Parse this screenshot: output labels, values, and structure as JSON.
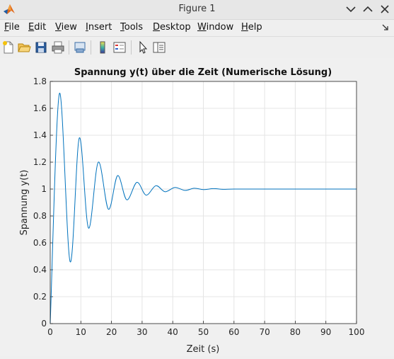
{
  "window": {
    "title": "Figure 1",
    "icon": "matlab-logo-icon",
    "controls": [
      "chevron-down-icon",
      "chevron-up-icon",
      "close-icon"
    ]
  },
  "menu": {
    "items": [
      {
        "label": "File",
        "mnemonic": "F",
        "rest": "ile"
      },
      {
        "label": "Edit",
        "mnemonic": "E",
        "rest": "dit"
      },
      {
        "label": "View",
        "mnemonic": "V",
        "rest": "iew"
      },
      {
        "label": "Insert",
        "mnemonic": "I",
        "rest": "nsert"
      },
      {
        "label": "Tools",
        "mnemonic": "T",
        "rest": "ools"
      },
      {
        "label": "Desktop",
        "mnemonic": "D",
        "rest": "esktop"
      },
      {
        "label": "Window",
        "mnemonic": "W",
        "rest": "indow"
      },
      {
        "label": "Help",
        "mnemonic": "H",
        "rest": "elp"
      }
    ]
  },
  "toolbar": {
    "buttons": [
      "new-figure-icon",
      "open-file-icon",
      "save-icon",
      "print-icon",
      "link-plot-icon",
      "colorbar-icon",
      "legend-icon",
      "pointer-icon",
      "property-inspector-icon"
    ]
  },
  "colors": {
    "line": "#0072bd",
    "grid": "#e4e4e4",
    "axes": "#262626",
    "window_bg": "#efefef"
  },
  "chart_data": {
    "type": "line",
    "title": "Spannung y(t) über die Zeit (Numerische Lösung)",
    "xlabel": "Zeit (s)",
    "ylabel": "Spannung y(t)",
    "xlim": [
      0,
      100
    ],
    "ylim": [
      0,
      1.8
    ],
    "xticks": [
      "0",
      "10",
      "20",
      "30",
      "40",
      "50",
      "60",
      "70",
      "80",
      "90",
      "100"
    ],
    "yticks": [
      "0",
      "0.2",
      "0.4",
      "0.6",
      "0.8",
      "1",
      "1.2",
      "1.4",
      "1.6",
      "1.8"
    ],
    "grid": true,
    "legend": "none",
    "series": [
      {
        "x": [
          0,
          3,
          6.5,
          9.5,
          12.5,
          15.7,
          19,
          22,
          25,
          28.3,
          31.3,
          34.5,
          37.5,
          40.7,
          44,
          47,
          50,
          53.3,
          56.5,
          60,
          70,
          80,
          90,
          100
        ],
        "values": [
          0,
          1.71,
          0.46,
          1.38,
          0.71,
          1.2,
          0.85,
          1.1,
          0.92,
          1.05,
          0.955,
          1.025,
          0.98,
          1.012,
          0.99,
          1.006,
          0.996,
          1.003,
          0.998,
          1.0,
          1.0,
          1.0,
          1.0,
          1.0
        ]
      }
    ]
  }
}
